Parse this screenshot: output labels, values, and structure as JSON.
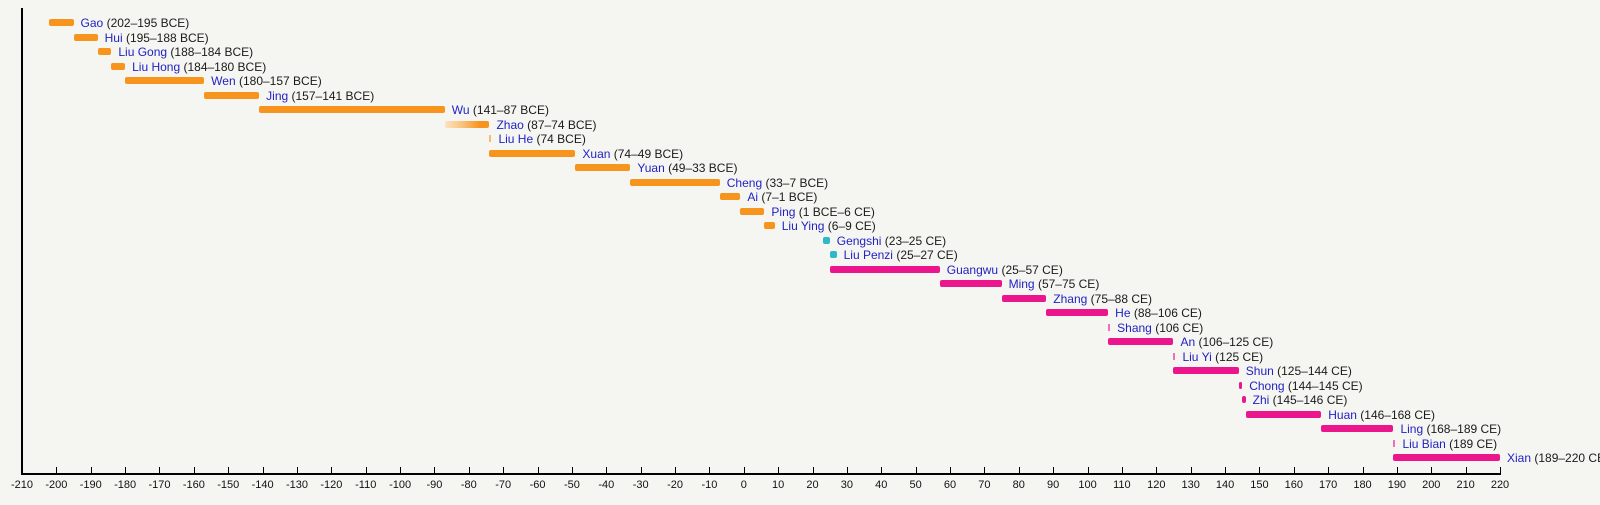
{
  "chart_data": {
    "type": "bar",
    "subtype": "horizontal-timeline-gantt",
    "title": "",
    "xlabel": "",
    "ylabel": "",
    "axis": {
      "min": -210,
      "max": 220,
      "step": 10
    },
    "grid": false,
    "legend": false,
    "group_colors": {
      "western_han": "#F7941E",
      "interregnum": "#2EB8C8",
      "eastern_han": "#EC168C"
    },
    "emperors": [
      {
        "name": "Gao",
        "dates": "(202–195 BCE)",
        "start": -202,
        "end": -195,
        "group": "western_han"
      },
      {
        "name": "Hui",
        "dates": "(195–188 BCE)",
        "start": -195,
        "end": -188,
        "group": "western_han"
      },
      {
        "name": "Liu Gong",
        "dates": "(188–184 BCE)",
        "start": -188,
        "end": -184,
        "group": "western_han"
      },
      {
        "name": "Liu Hong",
        "dates": "(184–180 BCE)",
        "start": -184,
        "end": -180,
        "group": "western_han"
      },
      {
        "name": "Wen",
        "dates": "(180–157 BCE)",
        "start": -180,
        "end": -157,
        "group": "western_han"
      },
      {
        "name": "Jing",
        "dates": "(157–141 BCE)",
        "start": -157,
        "end": -141,
        "group": "western_han"
      },
      {
        "name": "Wu",
        "dates": "(141–87 BCE)",
        "start": -141,
        "end": -87,
        "group": "western_han"
      },
      {
        "name": "Zhao",
        "dates": "(87–74 BCE)",
        "start": -87,
        "end": -74,
        "group": "western_han",
        "faded_start": true
      },
      {
        "name": "Liu He",
        "dates": "(74 BCE)",
        "start": -74,
        "end": -74,
        "group": "western_han"
      },
      {
        "name": "Xuan",
        "dates": "(74–49 BCE)",
        "start": -74,
        "end": -49,
        "group": "western_han"
      },
      {
        "name": "Yuan",
        "dates": "(49–33 BCE)",
        "start": -49,
        "end": -33,
        "group": "western_han"
      },
      {
        "name": "Cheng",
        "dates": "(33–7 BCE)",
        "start": -33,
        "end": -7,
        "group": "western_han"
      },
      {
        "name": "Ai",
        "dates": "(7–1 BCE)",
        "start": -7,
        "end": -1,
        "group": "western_han"
      },
      {
        "name": "Ping",
        "dates": "(1 BCE–6 CE)",
        "start": -1,
        "end": 6,
        "group": "western_han"
      },
      {
        "name": "Liu Ying",
        "dates": "(6–9 CE)",
        "start": 6,
        "end": 9,
        "group": "western_han"
      },
      {
        "name": "Gengshi",
        "dates": "(23–25 CE)",
        "start": 23,
        "end": 25,
        "group": "interregnum"
      },
      {
        "name": "Liu Penzi",
        "dates": "(25–27 CE)",
        "start": 25,
        "end": 27,
        "group": "interregnum"
      },
      {
        "name": "Guangwu",
        "dates": "(25–57 CE)",
        "start": 25,
        "end": 57,
        "group": "eastern_han"
      },
      {
        "name": "Ming",
        "dates": "(57–75 CE)",
        "start": 57,
        "end": 75,
        "group": "eastern_han"
      },
      {
        "name": "Zhang",
        "dates": "(75–88 CE)",
        "start": 75,
        "end": 88,
        "group": "eastern_han"
      },
      {
        "name": "He",
        "dates": "(88–106 CE)",
        "start": 88,
        "end": 106,
        "group": "eastern_han"
      },
      {
        "name": "Shang",
        "dates": "(106 CE)",
        "start": 106,
        "end": 106,
        "group": "eastern_han"
      },
      {
        "name": "An",
        "dates": "(106–125 CE)",
        "start": 106,
        "end": 125,
        "group": "eastern_han"
      },
      {
        "name": "Liu Yi",
        "dates": "(125 CE)",
        "start": 125,
        "end": 125,
        "group": "eastern_han"
      },
      {
        "name": "Shun",
        "dates": "(125–144 CE)",
        "start": 125,
        "end": 144,
        "group": "eastern_han"
      },
      {
        "name": "Chong",
        "dates": "(144–145 CE)",
        "start": 144,
        "end": 145,
        "group": "eastern_han"
      },
      {
        "name": "Zhi",
        "dates": "(145–146 CE)",
        "start": 145,
        "end": 146,
        "group": "eastern_han"
      },
      {
        "name": "Huan",
        "dates": "(146–168 CE)",
        "start": 146,
        "end": 168,
        "group": "eastern_han"
      },
      {
        "name": "Ling",
        "dates": "(168–189 CE)",
        "start": 168,
        "end": 189,
        "group": "eastern_han"
      },
      {
        "name": "Liu Bian",
        "dates": "(189 CE)",
        "start": 189,
        "end": 189,
        "group": "eastern_han"
      },
      {
        "name": "Xian",
        "dates": "(189–220 CE)",
        "start": 189,
        "end": 220,
        "group": "eastern_han"
      }
    ]
  },
  "colors": {
    "background": "#f5f5f2",
    "axis": "#000000",
    "tick_label": "#111111",
    "emperor_name": "#2222c4",
    "emperor_dates": "#1a1a1a"
  }
}
